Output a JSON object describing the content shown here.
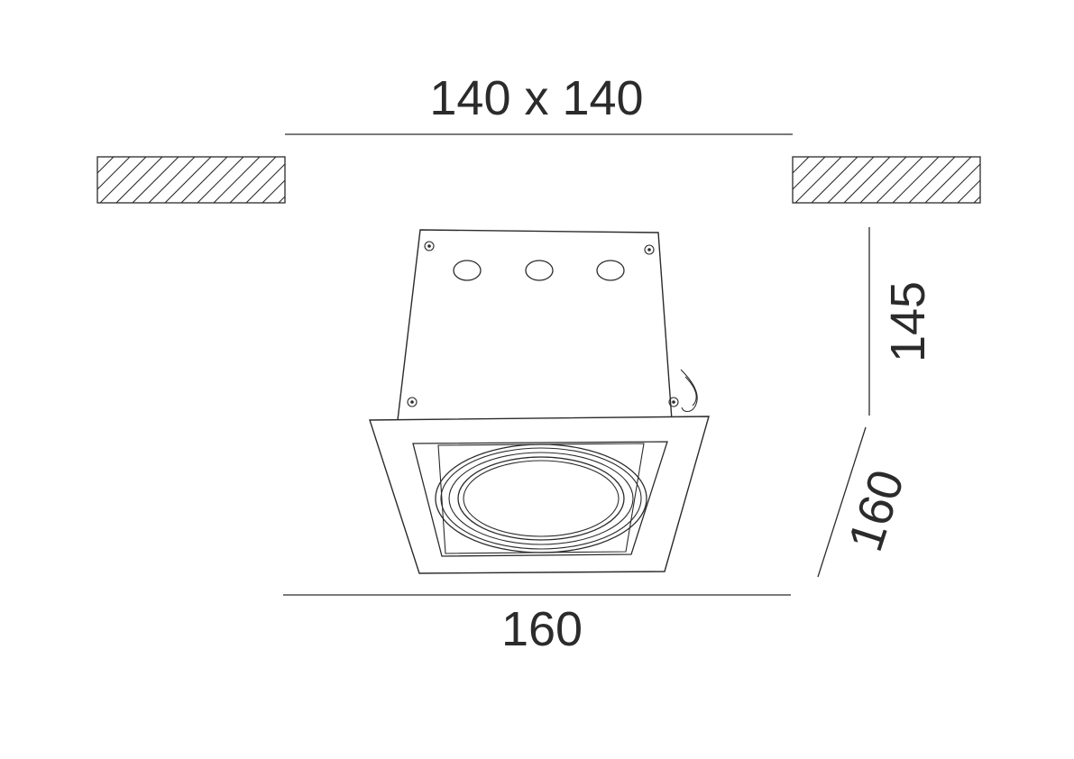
{
  "dimensions": {
    "cutout": "140 x 140",
    "height": "145",
    "depth": "160",
    "width": "160"
  },
  "colors": {
    "line": "#2b2b2b",
    "background": "#ffffff"
  }
}
